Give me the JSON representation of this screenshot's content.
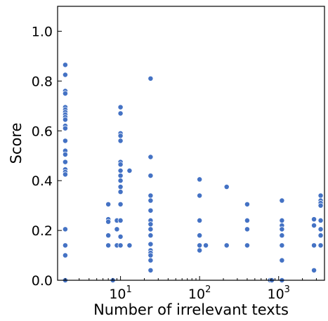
{
  "chart_data": {
    "type": "scatter",
    "title": "",
    "xlabel": "Number of irrelevant texts",
    "ylabel": "Score",
    "xscale": "log",
    "xlim": [
      1.6,
      3800
    ],
    "ylim": [
      0,
      1.1
    ],
    "grid": false,
    "legend": "none",
    "x_ticks": [
      {
        "value": 10,
        "base": "10",
        "exp": "1"
      },
      {
        "value": 100,
        "base": "10",
        "exp": "2"
      },
      {
        "value": 1000,
        "base": "10",
        "exp": "3"
      }
    ],
    "y_ticks": [
      {
        "value": 0.0,
        "label": "0.0"
      },
      {
        "value": 0.2,
        "label": "0.2"
      },
      {
        "value": 0.4,
        "label": "0.4"
      },
      {
        "value": 0.6,
        "label": "0.6"
      },
      {
        "value": 0.8,
        "label": "0.8"
      },
      {
        "value": 1.0,
        "label": "1.0"
      }
    ],
    "series": [
      {
        "color": "#4472c4",
        "points": [
          [
            2,
            0.865
          ],
          [
            2,
            0.825
          ],
          [
            2,
            0.76
          ],
          [
            2,
            0.75
          ],
          [
            2,
            0.695
          ],
          [
            2,
            0.685
          ],
          [
            2,
            0.675
          ],
          [
            2,
            0.665
          ],
          [
            2,
            0.655
          ],
          [
            2,
            0.645
          ],
          [
            2,
            0.62
          ],
          [
            2,
            0.61
          ],
          [
            2,
            0.56
          ],
          [
            2,
            0.52
          ],
          [
            2,
            0.505
          ],
          [
            2,
            0.475
          ],
          [
            2,
            0.445
          ],
          [
            2,
            0.435
          ],
          [
            2,
            0.425
          ],
          [
            2,
            0.205
          ],
          [
            2,
            0.14
          ],
          [
            2,
            0.1
          ],
          [
            2,
            0.0
          ],
          [
            7,
            0.305
          ],
          [
            7,
            0.245
          ],
          [
            7,
            0.235
          ],
          [
            7,
            0.18
          ],
          [
            7,
            0.14
          ],
          [
            8,
            0.0
          ],
          [
            9,
            0.24
          ],
          [
            9,
            0.205
          ],
          [
            9,
            0.14
          ],
          [
            10,
            0.695
          ],
          [
            10,
            0.67
          ],
          [
            10,
            0.59
          ],
          [
            10,
            0.58
          ],
          [
            10,
            0.56
          ],
          [
            10,
            0.475
          ],
          [
            10,
            0.465
          ],
          [
            10,
            0.44
          ],
          [
            10,
            0.42
          ],
          [
            10,
            0.4
          ],
          [
            10,
            0.375
          ],
          [
            10,
            0.355
          ],
          [
            10,
            0.305
          ],
          [
            10,
            0.24
          ],
          [
            10,
            0.175
          ],
          [
            10,
            0.14
          ],
          [
            13,
            0.44
          ],
          [
            13,
            0.14
          ],
          [
            24,
            0.81
          ],
          [
            24,
            0.495
          ],
          [
            24,
            0.42
          ],
          [
            24,
            0.34
          ],
          [
            24,
            0.32
          ],
          [
            24,
            0.28
          ],
          [
            24,
            0.24
          ],
          [
            24,
            0.225
          ],
          [
            24,
            0.205
          ],
          [
            24,
            0.18
          ],
          [
            24,
            0.145
          ],
          [
            24,
            0.12
          ],
          [
            24,
            0.11
          ],
          [
            24,
            0.1
          ],
          [
            24,
            0.08
          ],
          [
            24,
            0.04
          ],
          [
            100,
            0.405
          ],
          [
            100,
            0.34
          ],
          [
            100,
            0.24
          ],
          [
            100,
            0.18
          ],
          [
            100,
            0.14
          ],
          [
            100,
            0.12
          ],
          [
            120,
            0.14
          ],
          [
            220,
            0.375
          ],
          [
            220,
            0.14
          ],
          [
            400,
            0.305
          ],
          [
            400,
            0.24
          ],
          [
            400,
            0.205
          ],
          [
            400,
            0.14
          ],
          [
            780,
            0.0
          ],
          [
            820,
            0.0
          ],
          [
            1100,
            0.32
          ],
          [
            1100,
            0.24
          ],
          [
            1100,
            0.22
          ],
          [
            1100,
            0.205
          ],
          [
            1100,
            0.18
          ],
          [
            1100,
            0.14
          ],
          [
            1100,
            0.08
          ],
          [
            1100,
            0.0
          ],
          [
            2800,
            0.245
          ],
          [
            2800,
            0.22
          ],
          [
            2800,
            0.14
          ],
          [
            2800,
            0.04
          ],
          [
            3400,
            0.34
          ],
          [
            3400,
            0.32
          ],
          [
            3400,
            0.31
          ],
          [
            3400,
            0.3
          ],
          [
            3400,
            0.24
          ],
          [
            3400,
            0.205
          ],
          [
            3400,
            0.18
          ],
          [
            3400,
            0.14
          ]
        ]
      }
    ]
  }
}
